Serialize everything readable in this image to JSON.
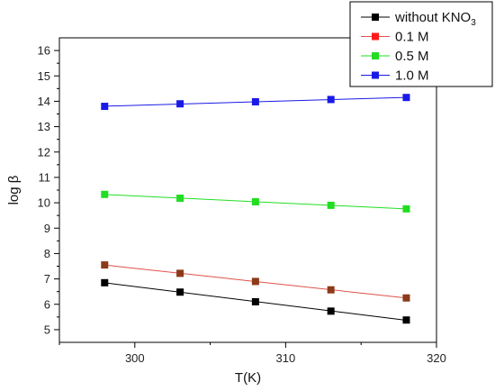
{
  "chart_data": {
    "type": "line",
    "x": [
      298,
      303,
      308,
      313,
      318
    ],
    "series": [
      {
        "name": "without KNO3",
        "legend_main": "without KNO",
        "legend_sub": "3",
        "color": "#000000",
        "fit_color": "#000000",
        "values": [
          6.85,
          6.48,
          6.1,
          5.73,
          5.38
        ]
      },
      {
        "name": "0.1 M",
        "legend_main": "0.1 M",
        "legend_sub": "",
        "color": "#8B3A1A",
        "legend_color": "#FF1A1A",
        "fit_color": "#E0504A",
        "values": [
          7.55,
          7.22,
          6.9,
          6.57,
          6.25
        ]
      },
      {
        "name": "0.5 M",
        "legend_main": "0.5 M",
        "legend_sub": "",
        "color": "#22DD22",
        "fit_color": "#22DD22",
        "values": [
          10.33,
          10.18,
          10.04,
          9.9,
          9.76
        ]
      },
      {
        "name": "1.0 M",
        "legend_main": "1.0 M",
        "legend_sub": "",
        "color": "#1A1AE6",
        "fit_color": "#1A1AE6",
        "values": [
          13.8,
          13.9,
          13.98,
          14.07,
          14.15
        ]
      }
    ],
    "xlabel": "T(K)",
    "ylabel": "log β",
    "xlim": [
      295,
      320
    ],
    "ylim": [
      4.5,
      16.5
    ],
    "xticks": [
      300,
      310,
      320
    ],
    "yticks": [
      5,
      6,
      7,
      8,
      9,
      10,
      11,
      12,
      13,
      14,
      15,
      16
    ],
    "grid": false,
    "legend_position": "top-right"
  }
}
